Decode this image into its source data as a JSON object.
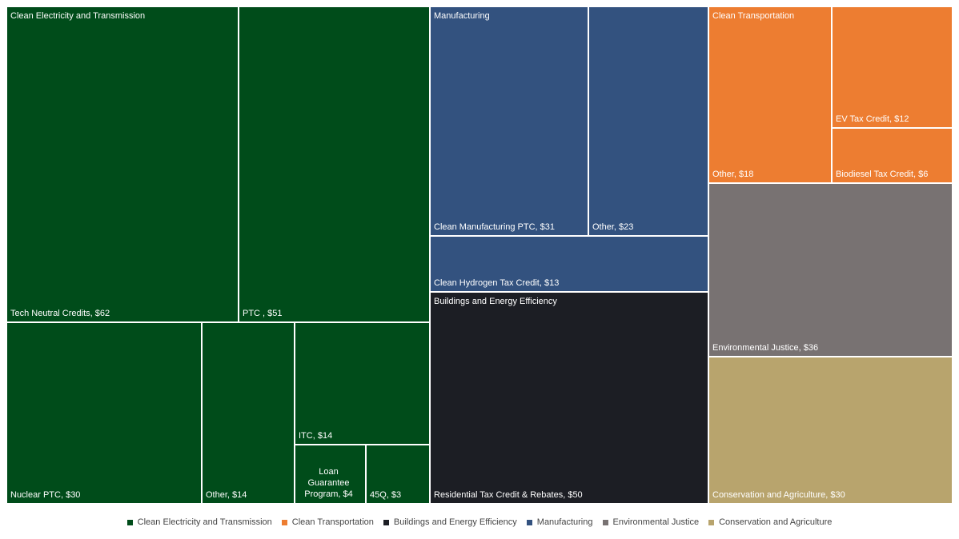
{
  "chart_data": {
    "type": "treemap",
    "units": "$",
    "colors": {
      "Clean Electricity and Transmission": "#004c1a",
      "Clean Transportation": "#ed7d31",
      "Buildings and Energy Efficiency": "#1c1e24",
      "Manufacturing": "#33527f",
      "Environmental Justice": "#787272",
      "Conservation and Agriculture": "#b8a46d"
    },
    "groups": [
      {
        "name": "Clean Electricity and Transmission",
        "items": [
          {
            "label": "Tech Neutral Credits, $62",
            "value": 62
          },
          {
            "label": "PTC , $51",
            "value": 51
          },
          {
            "label": "Nuclear PTC, $30",
            "value": 30
          },
          {
            "label": "Other, $14",
            "value": 14
          },
          {
            "label": "ITC, $14",
            "value": 14
          },
          {
            "label": "Loan Guarantee Program, $4",
            "value": 4
          },
          {
            "label": "45Q, $3",
            "value": 3
          }
        ]
      },
      {
        "name": "Manufacturing",
        "items": [
          {
            "label": "Clean Manufacturing PTC, $31",
            "value": 31
          },
          {
            "label": "Other, $23",
            "value": 23
          },
          {
            "label": "Clean Hydrogen Tax Credit, $13",
            "value": 13
          }
        ]
      },
      {
        "name": "Buildings and Energy Efficiency",
        "items": [
          {
            "label": "Residential Tax Credit & Rebates, $50",
            "value": 50
          }
        ]
      },
      {
        "name": "Clean Transportation",
        "items": [
          {
            "label": "Other, $18",
            "value": 18
          },
          {
            "label": "EV Tax Credit, $12",
            "value": 12
          },
          {
            "label": "Biodiesel Tax Credit, $6",
            "value": 6
          }
        ]
      },
      {
        "name": "Environmental Justice",
        "items": [
          {
            "label": "Environmental Justice, $36",
            "value": 36
          }
        ]
      },
      {
        "name": "Conservation and Agriculture",
        "items": [
          {
            "label": "Conservation and Agriculture, $30",
            "value": 30
          }
        ]
      }
    ],
    "legend": [
      "Clean Electricity and Transmission",
      "Clean Transportation",
      "Buildings and Energy Efficiency",
      "Manufacturing",
      "Environmental Justice",
      "Conservation and Agriculture"
    ],
    "legend_position": "bottom"
  }
}
